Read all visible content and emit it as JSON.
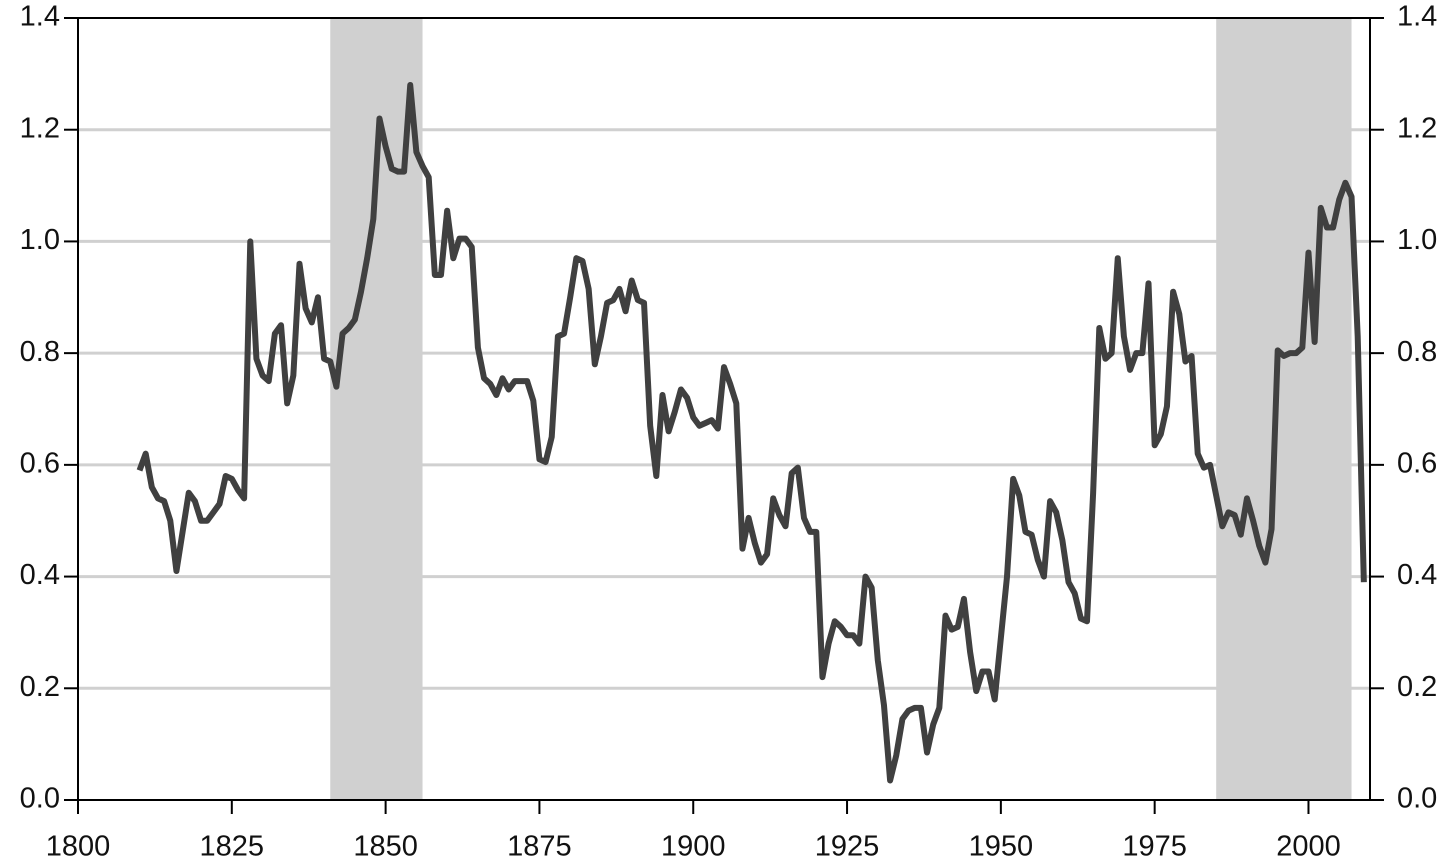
{
  "chart_data": {
    "type": "line",
    "color": "#404040",
    "grid": true,
    "grid_color": "#d0d0d0",
    "shaded_regions": [
      {
        "start": 1841,
        "end": 1856,
        "color": "#d0d0d0"
      },
      {
        "start": 1985,
        "end": 2007,
        "color": "#d0d0d0"
      }
    ],
    "xlim": [
      1800,
      2010
    ],
    "xticks": [
      1800,
      1825,
      1850,
      1875,
      1900,
      1925,
      1950,
      1975,
      2000
    ],
    "ylim": [
      0,
      1.4
    ],
    "yticks": [
      {
        "value": 0,
        "label": "0.0"
      },
      0.2,
      0.4,
      0.6,
      0.8,
      {
        "value": 1,
        "label": "1.0"
      },
      1.2,
      1.4
    ],
    "y2lim": [
      0,
      1.4
    ],
    "y2ticks": [
      {
        "value": 0,
        "label": "0.0"
      },
      0.2,
      0.4,
      0.6,
      0.8,
      {
        "value": 1,
        "label": "1.0"
      },
      1.2,
      1.4
    ],
    "x": [
      1810,
      1811,
      1812,
      1813,
      1814,
      1815,
      1816,
      1817,
      1818,
      1819,
      1820,
      1821,
      1822,
      1823,
      1824,
      1825,
      1826,
      1827,
      1828,
      1829,
      1830,
      1831,
      1832,
      1833,
      1834,
      1835,
      1836,
      1837,
      1838,
      1839,
      1840,
      1841,
      1842,
      1843,
      1844,
      1845,
      1846,
      1847,
      1848,
      1849,
      1850,
      1851,
      1852,
      1853,
      1854,
      1855,
      1856,
      1857,
      1858,
      1859,
      1860,
      1861,
      1862,
      1863,
      1864,
      1865,
      1866,
      1867,
      1868,
      1869,
      1870,
      1871,
      1872,
      1873,
      1874,
      1875,
      1876,
      1877,
      1878,
      1879,
      1880,
      1881,
      1882,
      1883,
      1884,
      1885,
      1886,
      1887,
      1888,
      1889,
      1890,
      1891,
      1892,
      1893,
      1894,
      1895,
      1896,
      1897,
      1898,
      1899,
      1900,
      1901,
      1902,
      1903,
      1904,
      1905,
      1906,
      1907,
      1908,
      1909,
      1910,
      1911,
      1912,
      1913,
      1914,
      1915,
      1916,
      1917,
      1918,
      1919,
      1920,
      1921,
      1922,
      1923,
      1924,
      1925,
      1926,
      1927,
      1928,
      1929,
      1930,
      1931,
      1932,
      1933,
      1934,
      1935,
      1936,
      1937,
      1938,
      1939,
      1940,
      1941,
      1942,
      1943,
      1944,
      1945,
      1946,
      1947,
      1948,
      1949,
      1950,
      1951,
      1952,
      1953,
      1954,
      1955,
      1956,
      1957,
      1958,
      1959,
      1960,
      1961,
      1962,
      1963,
      1964,
      1965,
      1966,
      1967,
      1968,
      1969,
      1970,
      1971,
      1972,
      1973,
      1974,
      1975,
      1976,
      1977,
      1978,
      1979,
      1980,
      1981,
      1982,
      1983,
      1984,
      1985,
      1986,
      1987,
      1988,
      1989,
      1990,
      1991,
      1992,
      1993,
      1994,
      1995,
      1996,
      1997,
      1998,
      1999,
      2000,
      2001,
      2002,
      2003,
      2004,
      2005,
      2006,
      2007,
      2008,
      2009
    ],
    "values": [
      0.59,
      0.62,
      0.56,
      0.54,
      0.535,
      0.5,
      0.41,
      0.48,
      0.55,
      0.535,
      0.5,
      0.5,
      0.515,
      0.53,
      0.58,
      0.575,
      0.555,
      0.54,
      1.0,
      0.79,
      0.76,
      0.75,
      0.835,
      0.85,
      0.71,
      0.76,
      0.96,
      0.88,
      0.855,
      0.9,
      0.79,
      0.785,
      0.74,
      0.835,
      0.845,
      0.86,
      0.91,
      0.97,
      1.04,
      1.22,
      1.17,
      1.13,
      1.125,
      1.125,
      1.28,
      1.16,
      1.135,
      1.115,
      0.94,
      0.94,
      1.055,
      0.97,
      1.005,
      1.005,
      0.99,
      0.81,
      0.755,
      0.745,
      0.725,
      0.755,
      0.735,
      0.75,
      0.75,
      0.75,
      0.715,
      0.61,
      0.605,
      0.65,
      0.83,
      0.835,
      0.9,
      0.97,
      0.965,
      0.915,
      0.78,
      0.83,
      0.89,
      0.895,
      0.915,
      0.875,
      0.93,
      0.895,
      0.89,
      0.67,
      0.58,
      0.725,
      0.66,
      0.695,
      0.735,
      0.72,
      0.685,
      0.67,
      0.675,
      0.68,
      0.665,
      0.775,
      0.745,
      0.71,
      0.45,
      0.505,
      0.46,
      0.425,
      0.44,
      0.54,
      0.51,
      0.49,
      0.585,
      0.595,
      0.505,
      0.48,
      0.48,
      0.22,
      0.28,
      0.32,
      0.31,
      0.295,
      0.295,
      0.28,
      0.4,
      0.38,
      0.25,
      0.17,
      0.035,
      0.08,
      0.145,
      0.16,
      0.165,
      0.165,
      0.085,
      0.135,
      0.165,
      0.33,
      0.305,
      0.31,
      0.36,
      0.265,
      0.195,
      0.23,
      0.23,
      0.18,
      0.29,
      0.4,
      0.575,
      0.545,
      0.48,
      0.475,
      0.43,
      0.4,
      0.535,
      0.515,
      0.465,
      0.39,
      0.37,
      0.325,
      0.32,
      0.55,
      0.845,
      0.79,
      0.8,
      0.97,
      0.83,
      0.77,
      0.8,
      0.8,
      0.925,
      0.635,
      0.655,
      0.705,
      0.91,
      0.87,
      0.785,
      0.795,
      0.62,
      0.595,
      0.6,
      0.545,
      0.49,
      0.515,
      0.51,
      0.475,
      0.54,
      0.5,
      0.455,
      0.425,
      0.485,
      0.805,
      0.795,
      0.8,
      0.8,
      0.81,
      0.98,
      0.82,
      1.06,
      1.025,
      1.025,
      1.075,
      1.105,
      1.08,
      0.83,
      0.39
    ]
  }
}
